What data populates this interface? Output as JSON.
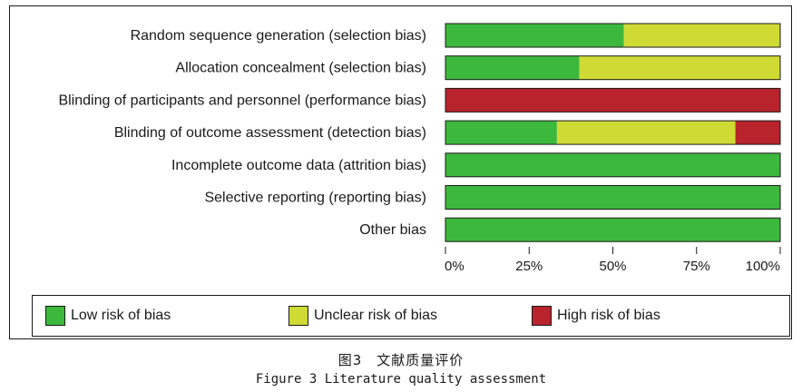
{
  "chart_data": {
    "type": "bar",
    "stacked": true,
    "orientation": "horizontal",
    "unit": "percent",
    "categories": [
      "Random sequence generation (selection bias)",
      "Allocation concealment (selection bias)",
      "Blinding of participants and personnel (performance bias)",
      "Blinding of outcome assessment (detection bias)",
      "Incomplete outcome data (attrition bias)",
      "Selective reporting (reporting bias)",
      "Other bias"
    ],
    "series": [
      {
        "name": "Low risk of bias",
        "color": "#3cb83c",
        "values": [
          53.3,
          40,
          0,
          33.3,
          100,
          100,
          100
        ]
      },
      {
        "name": "Unclear risk of bias",
        "color": "#cfdb34",
        "values": [
          46.7,
          60,
          0,
          53.3,
          0,
          0,
          0
        ]
      },
      {
        "name": "High risk of bias",
        "color": "#b8232c",
        "values": [
          0,
          0,
          100,
          13.4,
          0,
          0,
          0
        ]
      }
    ],
    "xlim": [
      0,
      100
    ],
    "xticks": [
      "0%",
      "25%",
      "50%",
      "75%",
      "100%"
    ],
    "legend_position": "bottom",
    "grid": false
  },
  "caption": {
    "cn": "图3　文献质量评价",
    "en": "Figure 3 Literature quality assessment"
  }
}
